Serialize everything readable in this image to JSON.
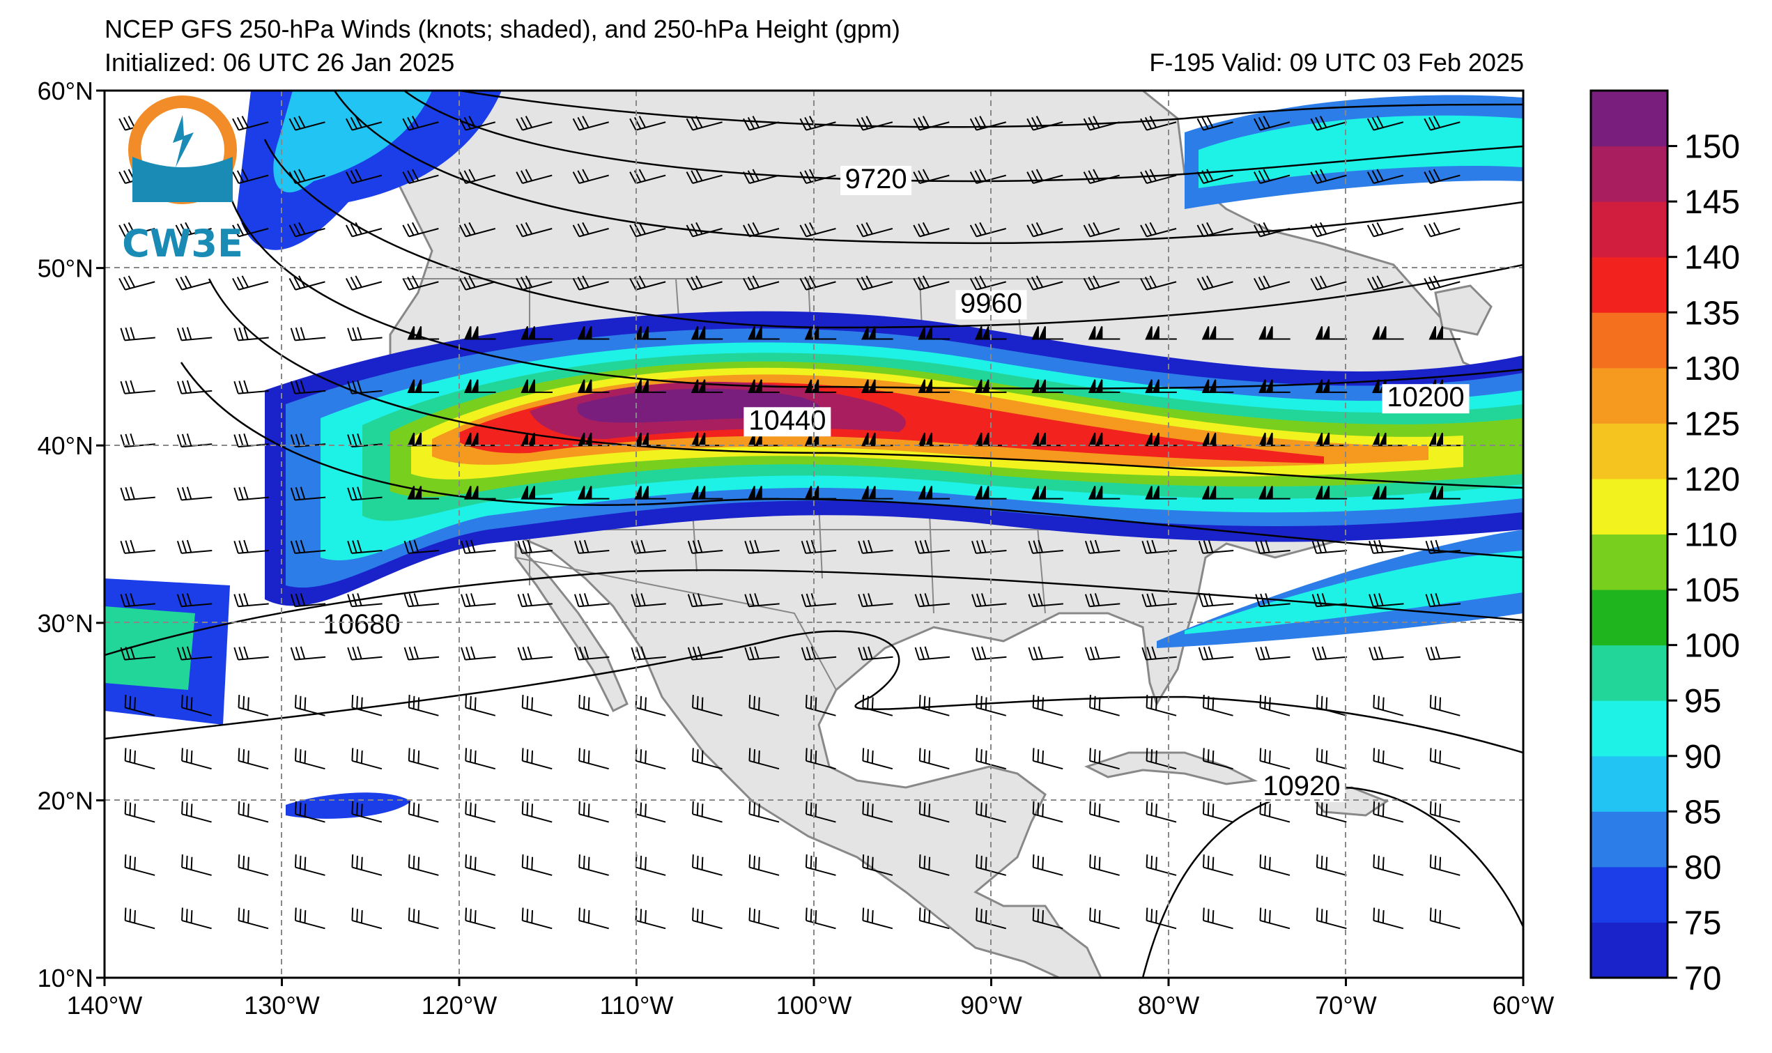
{
  "title": {
    "line1": "NCEP GFS 250-hPa Winds (knots; shaded), and 250-hPa Height (gpm)",
    "line2": "Initialized: 06 UTC 26 Jan 2025",
    "valid": "F-195  Valid: 09 UTC 03 Feb 2025"
  },
  "logo": {
    "text": "CW3E",
    "icon": "cw3e-logo-icon"
  },
  "axes": {
    "lon_ticks": [
      "140°W",
      "130°W",
      "120°W",
      "110°W",
      "100°W",
      "90°W",
      "80°W",
      "70°W",
      "60°W"
    ],
    "lat_ticks": [
      "60°N",
      "50°N",
      "40°N",
      "30°N",
      "20°N",
      "10°N"
    ],
    "lon_range": [
      -140,
      -60
    ],
    "lat_range": [
      10,
      60
    ],
    "grid": "dashed"
  },
  "colorbar": {
    "levels": [
      70,
      75,
      80,
      85,
      90,
      95,
      100,
      105,
      110,
      120,
      125,
      130,
      135,
      140,
      145,
      150
    ],
    "tick_labels": [
      "150",
      "145",
      "140",
      "135",
      "130",
      "125",
      "120",
      "110",
      "105",
      "100",
      "95",
      "90",
      "85",
      "80",
      "75",
      "70"
    ],
    "colors": [
      "#1a22c9",
      "#1c3ee8",
      "#2c7de8",
      "#22c4f3",
      "#1ef2e6",
      "#22d69a",
      "#1eb51e",
      "#79cf1e",
      "#f2f21e",
      "#f5c41e",
      "#f59a1e",
      "#f5701e",
      "#f2221e",
      "#d21e3e",
      "#a81e5e",
      "#7a1e7e"
    ]
  },
  "contour_labels": [
    {
      "text": "9720",
      "lon": -96.5,
      "lat": 54.5
    },
    {
      "text": "9960",
      "lon": -90,
      "lat": 47.5
    },
    {
      "text": "10440",
      "lon": -101.5,
      "lat": 40.9
    },
    {
      "text": "10200",
      "lon": -65.5,
      "lat": 42.2
    },
    {
      "text": "10680",
      "lon": -125.5,
      "lat": 29.4
    },
    {
      "text": "10920",
      "lon": -72.5,
      "lat": 20.3
    }
  ],
  "colors": {
    "land": "#e4e4e4",
    "ocean": "#ffffff",
    "border": "#888888",
    "contour": "#000000"
  }
}
